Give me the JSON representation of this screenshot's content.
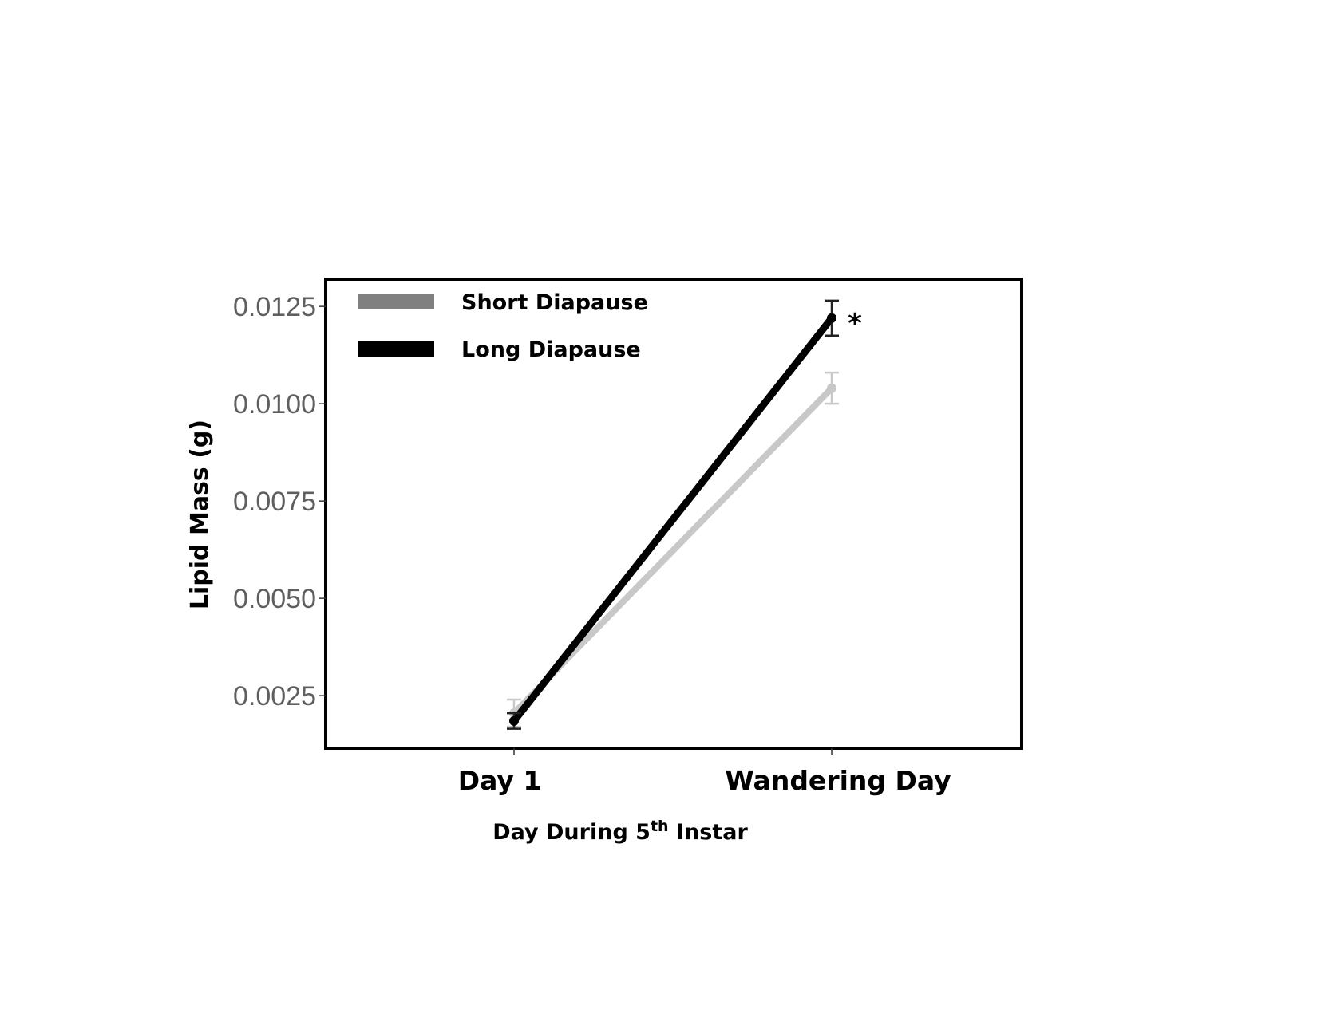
{
  "chart_data": {
    "type": "line",
    "xlabel_main": "Day During 5",
    "xlabel_sup": "th",
    "xlabel_tail": " Instar",
    "ylabel": "Lipid Mass (g)",
    "categories": [
      "Day 1",
      "Wandering Day"
    ],
    "yticks": [
      "0.0025",
      "0.0050",
      "0.0075",
      "0.0100",
      "0.0125"
    ],
    "ytick_values": [
      0.0025,
      0.005,
      0.0075,
      0.01,
      0.0125
    ],
    "ylim": [
      0.00115,
      0.0132
    ],
    "grid": false,
    "legend_position": "top-left",
    "series": [
      {
        "name": "Short Diapause",
        "color": "#c8c8c8",
        "legend_color": "#808080",
        "values": [
          0.00205,
          0.0104
        ],
        "error": [
          0.00035,
          0.0004
        ]
      },
      {
        "name": "Long Diapause",
        "color": "#000000",
        "legend_color": "#000000",
        "values": [
          0.00185,
          0.0122
        ],
        "error": [
          0.0002,
          0.00045
        ]
      }
    ],
    "annotations": [
      {
        "text": "*",
        "category": "Wandering Day",
        "value": 0.0122
      }
    ]
  }
}
